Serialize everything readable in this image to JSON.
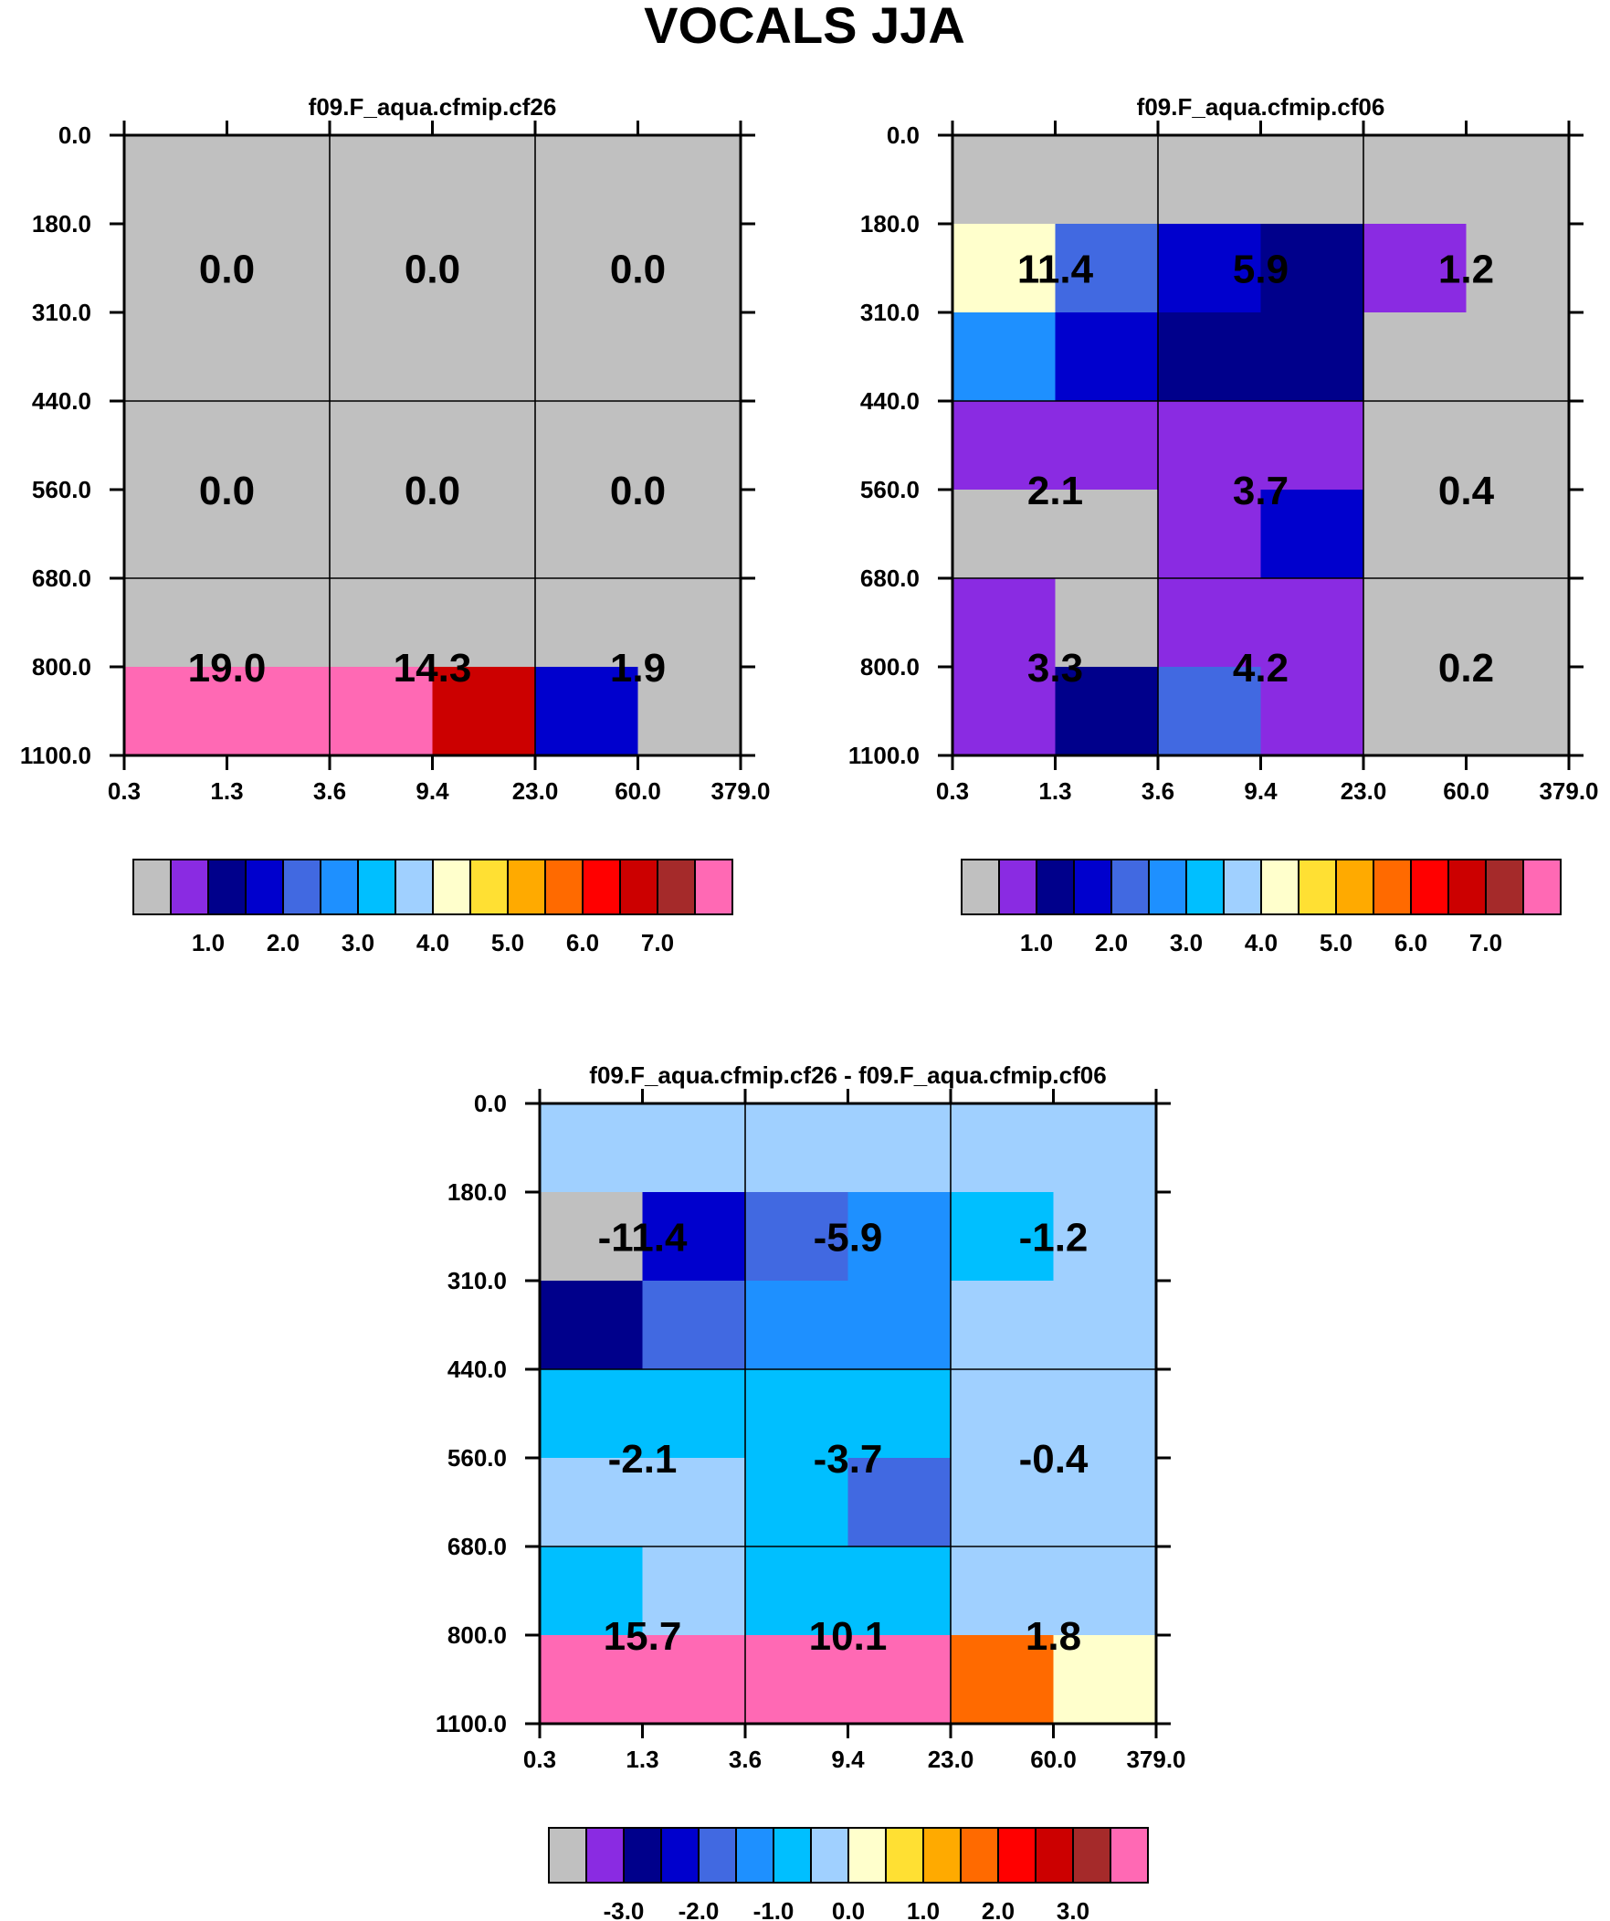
{
  "title": "VOCALS JJA",
  "tau_ticks": [
    "0.3",
    "1.3",
    "3.6",
    "9.4",
    "23.0",
    "60.0",
    "379.0"
  ],
  "pressure_ticks": [
    "0.0",
    "180.0",
    "310.0",
    "440.0",
    "560.0",
    "680.0",
    "800.0",
    "1100.0"
  ],
  "colors": [
    "#c0c0c0",
    "#8a2be2",
    "#00008b",
    "#0000cd",
    "#4169e1",
    "#1e90ff",
    "#00bfff",
    "#a0d0ff",
    "#ffffcc",
    "#ffe033",
    "#ffaa00",
    "#ff6a00",
    "#ff0000",
    "#cc0000",
    "#a52a2a",
    "#ff69b4"
  ],
  "colorbars": [
    {
      "labels": [
        "1.0",
        "2.0",
        "3.0",
        "4.0",
        "5.0",
        "6.0",
        "7.0"
      ]
    },
    {
      "labels": [
        "-3.0",
        "-2.0",
        "-1.0",
        "0.0",
        "1.0",
        "2.0",
        "3.0"
      ]
    }
  ],
  "chart_data": [
    {
      "type": "heatmap",
      "title": "f09.F_aqua.cfmip.cf26",
      "xlabel": "",
      "ylabel": "",
      "x": [
        "0.3",
        "1.3",
        "3.6",
        "9.4",
        "23.0",
        "60.0",
        "379.0"
      ],
      "y": [
        "0.0",
        "180.0",
        "310.0",
        "440.0",
        "560.0",
        "680.0",
        "800.0",
        "1100.0"
      ],
      "cell_color_index": [
        [
          0,
          0,
          0,
          0,
          0,
          0
        ],
        [
          0,
          0,
          0,
          0,
          0,
          0
        ],
        [
          0,
          0,
          0,
          0,
          0,
          0
        ],
        [
          0,
          0,
          0,
          0,
          0,
          0
        ],
        [
          0,
          0,
          0,
          0,
          0,
          0
        ],
        [
          0,
          0,
          0,
          0,
          0,
          0
        ],
        [
          15,
          15,
          15,
          13,
          3,
          0
        ]
      ],
      "block_values": [
        [
          "0.0",
          "0.0",
          "0.0"
        ],
        [
          "0.0",
          "0.0",
          "0.0"
        ],
        [
          "19.0",
          "14.3",
          "1.9"
        ]
      ]
    },
    {
      "type": "heatmap",
      "title": "f09.F_aqua.cfmip.cf06",
      "xlabel": "",
      "ylabel": "",
      "x": [
        "0.3",
        "1.3",
        "3.6",
        "9.4",
        "23.0",
        "60.0",
        "379.0"
      ],
      "y": [
        "0.0",
        "180.0",
        "310.0",
        "440.0",
        "560.0",
        "680.0",
        "800.0",
        "1100.0"
      ],
      "cell_color_index": [
        [
          0,
          0,
          0,
          0,
          0,
          0
        ],
        [
          8,
          4,
          3,
          2,
          1,
          0
        ],
        [
          5,
          3,
          2,
          2,
          0,
          0
        ],
        [
          1,
          1,
          1,
          1,
          0,
          0
        ],
        [
          0,
          0,
          1,
          3,
          0,
          0
        ],
        [
          1,
          0,
          1,
          1,
          0,
          0
        ],
        [
          1,
          2,
          4,
          1,
          0,
          0
        ]
      ],
      "block_values": [
        [
          "11.4",
          "5.9",
          "1.2"
        ],
        [
          "2.1",
          "3.7",
          "0.4"
        ],
        [
          "3.3",
          "4.2",
          "0.2"
        ]
      ]
    },
    {
      "type": "heatmap",
      "title": "f09.F_aqua.cfmip.cf26 - f09.F_aqua.cfmip.cf06",
      "xlabel": "",
      "ylabel": "",
      "x": [
        "0.3",
        "1.3",
        "3.6",
        "9.4",
        "23.0",
        "60.0",
        "379.0"
      ],
      "y": [
        "0.0",
        "180.0",
        "310.0",
        "440.0",
        "560.0",
        "680.0",
        "800.0",
        "1100.0"
      ],
      "cell_color_index": [
        [
          7,
          7,
          7,
          7,
          7,
          7
        ],
        [
          0,
          3,
          4,
          5,
          6,
          7
        ],
        [
          2,
          4,
          5,
          5,
          7,
          7
        ],
        [
          6,
          6,
          6,
          6,
          7,
          7
        ],
        [
          7,
          7,
          6,
          4,
          7,
          7
        ],
        [
          6,
          7,
          6,
          6,
          7,
          7
        ],
        [
          15,
          15,
          15,
          15,
          11,
          8
        ]
      ],
      "block_values": [
        [
          "-11.4",
          "-5.9",
          "-1.2"
        ],
        [
          "-2.1",
          "-3.7",
          "-0.4"
        ],
        [
          "15.7",
          "10.1",
          "1.8"
        ]
      ]
    }
  ]
}
